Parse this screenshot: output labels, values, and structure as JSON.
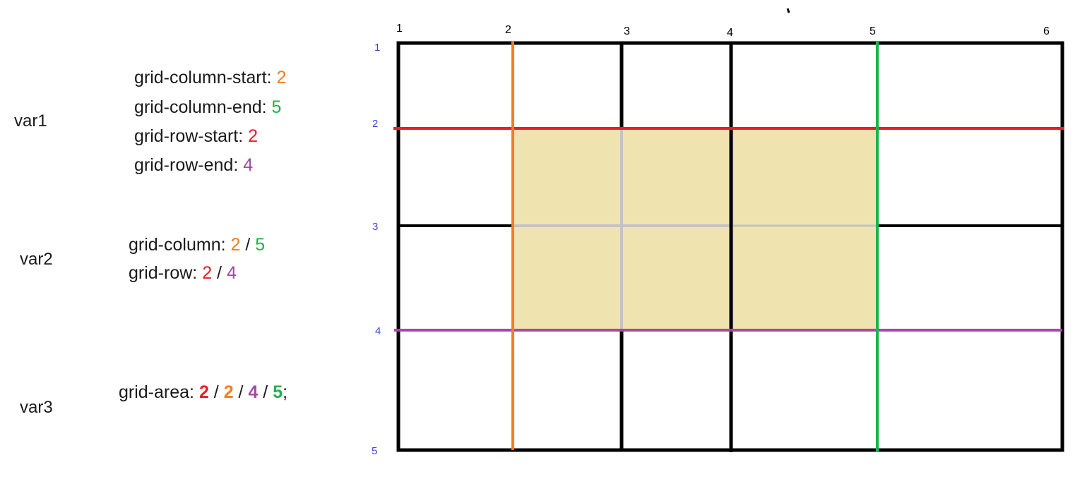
{
  "variants": [
    {
      "name": "var1",
      "lines": [
        {
          "prop": "grid-column-start: ",
          "parts": [
            {
              "text": "2",
              "color": "orange"
            }
          ]
        },
        {
          "prop": "grid-column-end: ",
          "parts": [
            {
              "text": "5",
              "color": "green"
            }
          ]
        },
        {
          "prop": "grid-row-start:  ",
          "parts": [
            {
              "text": "2",
              "color": "red"
            }
          ]
        },
        {
          "prop": "grid-row-end:  ",
          "parts": [
            {
              "text": "4",
              "color": "purple"
            }
          ]
        }
      ]
    },
    {
      "name": "var2",
      "lines": [
        {
          "prop": "grid-column: ",
          "parts": [
            {
              "text": "2",
              "color": "orange"
            },
            {
              "text": " / "
            },
            {
              "text": "5",
              "color": "green"
            }
          ]
        },
        {
          "prop": "grid-row: ",
          "parts": [
            {
              "text": "2",
              "color": "red"
            },
            {
              "text": " / "
            },
            {
              "text": "4",
              "color": "purple"
            }
          ]
        }
      ]
    },
    {
      "name": "var3",
      "lines": [
        {
          "prop": "grid-area: ",
          "parts": [
            {
              "text": "2",
              "color": "red"
            },
            {
              "text": " / "
            },
            {
              "text": "2",
              "color": "orange"
            },
            {
              "text": " / "
            },
            {
              "text": "4",
              "color": "purple"
            },
            {
              "text": " / "
            },
            {
              "text": "5",
              "color": "green"
            },
            {
              "text": ";"
            }
          ]
        }
      ]
    }
  ],
  "grid": {
    "column_lines": [
      "1",
      "2",
      "3",
      "4",
      "5",
      "6"
    ],
    "row_lines": [
      "1",
      "2",
      "3",
      "4",
      "5"
    ],
    "highlight": {
      "row_start": 2,
      "row_end": 4,
      "col_start": 2,
      "col_end": 5
    }
  },
  "colors": {
    "orange": "#f47c20",
    "green": "#22b14c",
    "red": "#ed1c24",
    "purple": "#a349a4",
    "area_fill": "#efe4b0",
    "inner_lines": "#c3c3c3",
    "row_number": "#3f48cc"
  }
}
